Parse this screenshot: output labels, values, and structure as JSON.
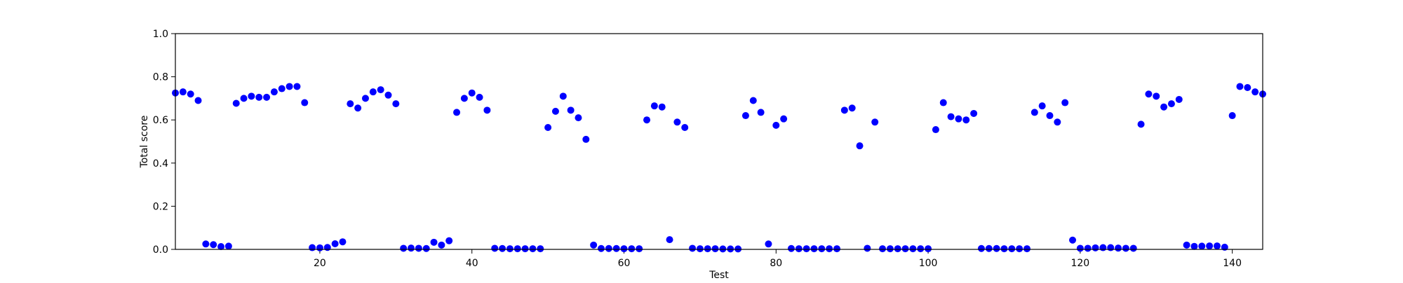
{
  "chart_data": {
    "type": "scatter",
    "title": "",
    "xlabel": "Test",
    "ylabel": "Total score",
    "xlim": [
      1,
      144
    ],
    "ylim": [
      0.0,
      1.0
    ],
    "grid": false,
    "marker_color": "#0000ff",
    "x_ticks": [
      {
        "value": 20,
        "label": "20"
      },
      {
        "value": 40,
        "label": "40"
      },
      {
        "value": 60,
        "label": "60"
      },
      {
        "value": 80,
        "label": "80"
      },
      {
        "value": 100,
        "label": "100"
      },
      {
        "value": 120,
        "label": "120"
      },
      {
        "value": 140,
        "label": "140"
      }
    ],
    "y_ticks": [
      {
        "value": 0.0,
        "label": "0.0"
      },
      {
        "value": 0.2,
        "label": "0.2"
      },
      {
        "value": 0.4,
        "label": "0.4"
      },
      {
        "value": 0.6,
        "label": "0.6"
      },
      {
        "value": 0.8,
        "label": "0.8"
      },
      {
        "value": 1.0,
        "label": "1.0"
      }
    ],
    "points": [
      [
        1,
        0.725
      ],
      [
        2,
        0.73
      ],
      [
        3,
        0.72
      ],
      [
        4,
        0.69
      ],
      [
        5,
        0.025
      ],
      [
        6,
        0.022
      ],
      [
        7,
        0.013
      ],
      [
        8,
        0.015
      ],
      [
        9,
        0.677
      ],
      [
        10,
        0.7
      ],
      [
        11,
        0.71
      ],
      [
        12,
        0.705
      ],
      [
        13,
        0.705
      ],
      [
        14,
        0.73
      ],
      [
        15,
        0.745
      ],
      [
        16,
        0.755
      ],
      [
        17,
        0.755
      ],
      [
        18,
        0.68
      ],
      [
        19,
        0.008
      ],
      [
        20,
        0.007
      ],
      [
        21,
        0.009
      ],
      [
        22,
        0.026
      ],
      [
        23,
        0.035
      ],
      [
        24,
        0.675
      ],
      [
        25,
        0.655
      ],
      [
        26,
        0.7
      ],
      [
        27,
        0.73
      ],
      [
        28,
        0.74
      ],
      [
        29,
        0.715
      ],
      [
        30,
        0.675
      ],
      [
        31,
        0.005
      ],
      [
        32,
        0.006
      ],
      [
        33,
        0.005
      ],
      [
        34,
        0.004
      ],
      [
        35,
        0.033
      ],
      [
        36,
        0.02
      ],
      [
        37,
        0.04
      ],
      [
        38,
        0.635
      ],
      [
        39,
        0.7
      ],
      [
        40,
        0.725
      ],
      [
        41,
        0.705
      ],
      [
        42,
        0.645
      ],
      [
        43,
        0.005
      ],
      [
        44,
        0.004
      ],
      [
        45,
        0.003
      ],
      [
        46,
        0.003
      ],
      [
        47,
        0.003
      ],
      [
        48,
        0.003
      ],
      [
        49,
        0.003
      ],
      [
        50,
        0.565
      ],
      [
        51,
        0.64
      ],
      [
        52,
        0.71
      ],
      [
        53,
        0.645
      ],
      [
        54,
        0.61
      ],
      [
        55,
        0.51
      ],
      [
        56,
        0.02
      ],
      [
        57,
        0.004
      ],
      [
        58,
        0.004
      ],
      [
        59,
        0.004
      ],
      [
        60,
        0.003
      ],
      [
        61,
        0.003
      ],
      [
        62,
        0.003
      ],
      [
        63,
        0.6
      ],
      [
        64,
        0.665
      ],
      [
        65,
        0.66
      ],
      [
        66,
        0.045
      ],
      [
        67,
        0.59
      ],
      [
        68,
        0.565
      ],
      [
        69,
        0.005
      ],
      [
        70,
        0.003
      ],
      [
        71,
        0.003
      ],
      [
        72,
        0.003
      ],
      [
        73,
        0.002
      ],
      [
        74,
        0.002
      ],
      [
        75,
        0.002
      ],
      [
        76,
        0.62
      ],
      [
        77,
        0.69
      ],
      [
        78,
        0.635
      ],
      [
        79,
        0.025
      ],
      [
        80,
        0.575
      ],
      [
        81,
        0.605
      ],
      [
        82,
        0.004
      ],
      [
        83,
        0.003
      ],
      [
        84,
        0.003
      ],
      [
        85,
        0.003
      ],
      [
        86,
        0.003
      ],
      [
        87,
        0.003
      ],
      [
        88,
        0.003
      ],
      [
        89,
        0.645
      ],
      [
        90,
        0.655
      ],
      [
        91,
        0.48
      ],
      [
        92,
        0.005
      ],
      [
        93,
        0.59
      ],
      [
        94,
        0.003
      ],
      [
        95,
        0.003
      ],
      [
        96,
        0.003
      ],
      [
        97,
        0.003
      ],
      [
        98,
        0.003
      ],
      [
        99,
        0.003
      ],
      [
        100,
        0.003
      ],
      [
        101,
        0.555
      ],
      [
        102,
        0.68
      ],
      [
        103,
        0.615
      ],
      [
        104,
        0.605
      ],
      [
        105,
        0.6
      ],
      [
        106,
        0.63
      ],
      [
        107,
        0.004
      ],
      [
        108,
        0.004
      ],
      [
        109,
        0.004
      ],
      [
        110,
        0.003
      ],
      [
        111,
        0.003
      ],
      [
        112,
        0.003
      ],
      [
        113,
        0.003
      ],
      [
        114,
        0.635
      ],
      [
        115,
        0.665
      ],
      [
        116,
        0.62
      ],
      [
        117,
        0.59
      ],
      [
        118,
        0.68
      ],
      [
        119,
        0.043
      ],
      [
        120,
        0.005
      ],
      [
        121,
        0.005
      ],
      [
        122,
        0.007
      ],
      [
        123,
        0.008
      ],
      [
        124,
        0.008
      ],
      [
        125,
        0.006
      ],
      [
        126,
        0.005
      ],
      [
        127,
        0.005
      ],
      [
        128,
        0.58
      ],
      [
        129,
        0.72
      ],
      [
        130,
        0.71
      ],
      [
        131,
        0.66
      ],
      [
        132,
        0.675
      ],
      [
        133,
        0.695
      ],
      [
        134,
        0.02
      ],
      [
        135,
        0.014
      ],
      [
        136,
        0.015
      ],
      [
        137,
        0.016
      ],
      [
        138,
        0.016
      ],
      [
        139,
        0.01
      ],
      [
        140,
        0.62
      ],
      [
        141,
        0.755
      ],
      [
        142,
        0.75
      ],
      [
        143,
        0.73
      ],
      [
        144,
        0.72
      ]
    ]
  }
}
